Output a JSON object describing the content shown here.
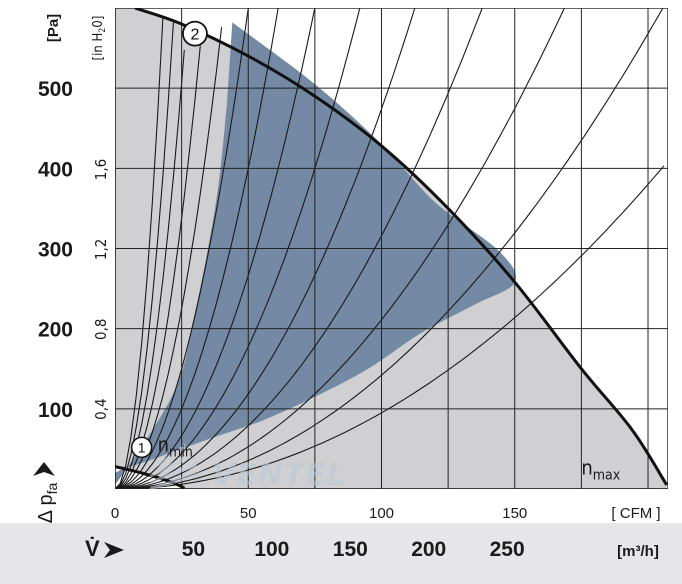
{
  "chart_data": {
    "type": "area",
    "colors": {
      "envelope": "#d0d0d2",
      "operating_zone": "#7489a3",
      "grid": "#222222",
      "curve": "#111111",
      "bottom_band": "#e6e6e8",
      "watermark": "#c4cfdb"
    },
    "y_axis": {
      "unit": "[Pa]",
      "ticks": [
        100,
        200,
        300,
        400,
        500
      ],
      "ylim": [
        0,
        600
      ],
      "arrow_label_main": "Δ p",
      "arrow_label_sub": "fa"
    },
    "y2_axis": {
      "unit_prefix": "[in H",
      "unit_sub": "2",
      "unit_suffix": "0]",
      "ticks": [
        "0,4",
        "0,8",
        "1,2",
        "1,6"
      ]
    },
    "x_axis_cfm": {
      "unit": "[ CFM ]",
      "ticks": [
        0,
        50,
        100,
        150
      ],
      "xlim": [
        0,
        207.5
      ]
    },
    "x_axis_m3h": {
      "symbol": "V̇",
      "unit": "[m³/h]",
      "ticks": [
        50,
        100,
        150,
        200,
        250
      ]
    },
    "curves": [
      {
        "id": "1",
        "label": "1",
        "speed_main": "n",
        "speed_sub": "min",
        "points": [
          [
            0,
            28
          ],
          [
            10,
            20
          ],
          [
            20,
            10
          ],
          [
            25,
            3
          ],
          [
            26,
            0
          ]
        ]
      },
      {
        "id": "2",
        "label": "2",
        "speed_main": "n",
        "speed_sub": "max",
        "points": [
          [
            7.5,
            600
          ],
          [
            25,
            580
          ],
          [
            50,
            540
          ],
          [
            75,
            490
          ],
          [
            100,
            428
          ],
          [
            125,
            350
          ],
          [
            150,
            258
          ],
          [
            175,
            150
          ],
          [
            194,
            74
          ],
          [
            207,
            5
          ]
        ]
      }
    ],
    "operating_zone_polygon": [
      [
        44,
        582
      ],
      [
        75,
        505
      ],
      [
        100,
        430
      ],
      [
        120,
        358
      ],
      [
        144,
        297
      ],
      [
        150,
        258
      ],
      [
        135,
        230
      ],
      [
        115,
        195
      ],
      [
        95,
        150
      ],
      [
        75,
        115
      ],
      [
        55,
        85
      ],
      [
        35,
        62
      ],
      [
        15,
        38
      ],
      [
        0,
        20
      ],
      [
        0,
        5
      ],
      [
        22,
        120
      ],
      [
        30,
        220
      ],
      [
        38,
        360
      ],
      [
        42,
        480
      ]
    ],
    "system_resistance_curves": {
      "k_values": [
        0.0095,
        0.0142,
        0.0211,
        0.0316,
        0.0474,
        0.0711,
        0.1067,
        0.16,
        0.24,
        0.36,
        0.54,
        0.81,
        1.21,
        1.82
      ]
    }
  }
}
